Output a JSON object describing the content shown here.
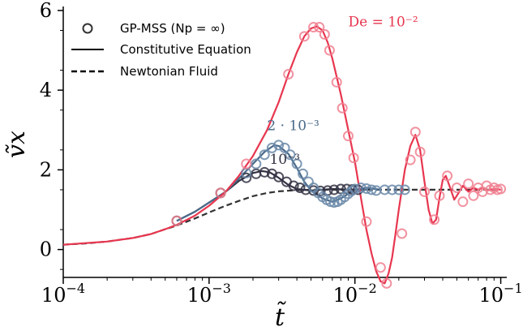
{
  "chart_data": {
    "type": "line",
    "xlabel": "t̃",
    "ylabel": "ṽx",
    "xscale": "log",
    "xlim": [
      0.0001,
      0.11
    ],
    "ylim": [
      -0.7,
      6.1
    ],
    "xticks": [
      {
        "value": 0.0001,
        "base": "10",
        "exp": "−4"
      },
      {
        "value": 0.001,
        "base": "10",
        "exp": "−3"
      },
      {
        "value": 0.01,
        "base": "10",
        "exp": "−2"
      },
      {
        "value": 0.1,
        "base": "10",
        "exp": "−1"
      }
    ],
    "yticks": [
      0,
      2,
      4,
      6
    ],
    "grid": false,
    "legend": {
      "placement": "top-left",
      "entries": [
        {
          "label": "GP-MSS (Np = ∞)",
          "marker": "circle"
        },
        {
          "label": "Constitutive Equation",
          "style": "solid"
        },
        {
          "label": "Newtonian Fluid",
          "style": "dashed"
        }
      ]
    },
    "series": [
      {
        "role": "newtonian",
        "style": "dashed",
        "color": "#333333",
        "x": [
          0.0001,
          0.00015,
          0.0002,
          0.0003,
          0.0004,
          0.0005,
          0.0006,
          0.0008,
          0.001,
          0.0013,
          0.0016,
          0.002,
          0.0025,
          0.003,
          0.004,
          0.005,
          0.007,
          0.01,
          0.02,
          0.05,
          0.1
        ],
        "y": [
          0.12,
          0.16,
          0.2,
          0.29,
          0.39,
          0.51,
          0.6,
          0.78,
          0.93,
          1.1,
          1.22,
          1.34,
          1.42,
          1.46,
          1.49,
          1.5,
          1.5,
          1.5,
          1.5,
          1.5,
          1.5
        ]
      },
      {
        "role": "constitutive",
        "de_label": "10⁻³",
        "style": "solid",
        "color": "#333344",
        "x": [
          0.0006,
          0.0008,
          0.001,
          0.0013,
          0.0016,
          0.002,
          0.0023,
          0.0026,
          0.003,
          0.0035,
          0.004,
          0.005,
          0.006,
          0.007,
          0.008,
          0.009,
          0.01,
          0.012
        ],
        "y": [
          0.72,
          0.95,
          1.18,
          1.45,
          1.72,
          1.92,
          1.97,
          1.94,
          1.8,
          1.62,
          1.52,
          1.48,
          1.5,
          1.52,
          1.51,
          1.5,
          1.5,
          1.5
        ]
      },
      {
        "role": "constitutive",
        "de_label": "2 · 10⁻³",
        "style": "solid",
        "color": "#4a6a8a",
        "x": [
          0.0006,
          0.0008,
          0.001,
          0.0013,
          0.0016,
          0.002,
          0.0024,
          0.0028,
          0.003,
          0.0035,
          0.004,
          0.0045,
          0.005,
          0.006,
          0.007,
          0.008,
          0.009,
          0.01,
          0.012,
          0.015
        ],
        "y": [
          0.72,
          0.95,
          1.18,
          1.45,
          1.78,
          2.15,
          2.45,
          2.62,
          2.6,
          2.4,
          2.05,
          1.7,
          1.48,
          1.28,
          1.2,
          1.28,
          1.4,
          1.5,
          1.55,
          1.5
        ]
      },
      {
        "role": "constitutive",
        "de_label": "De = 10⁻²",
        "style": "solid",
        "color": "#e8364f",
        "x": [
          0.0001,
          0.0002,
          0.0003,
          0.0004,
          0.0005,
          0.0006,
          0.0008,
          0.001,
          0.0013,
          0.0016,
          0.002,
          0.0025,
          0.003,
          0.0035,
          0.004,
          0.0045,
          0.005,
          0.0055,
          0.006,
          0.0065,
          0.007,
          0.008,
          0.009,
          0.01,
          0.011,
          0.012,
          0.013,
          0.014,
          0.015,
          0.016,
          0.017,
          0.018,
          0.019,
          0.02,
          0.022,
          0.024,
          0.026,
          0.028,
          0.03,
          0.032,
          0.034,
          0.036,
          0.038,
          0.04,
          0.042,
          0.045,
          0.048,
          0.05,
          0.055,
          0.06,
          0.065,
          0.07,
          0.075,
          0.08,
          0.09,
          0.1
        ],
        "y": [
          0.12,
          0.2,
          0.29,
          0.39,
          0.51,
          0.62,
          0.85,
          1.1,
          1.45,
          1.85,
          2.35,
          3.0,
          3.7,
          4.4,
          4.95,
          5.35,
          5.55,
          5.6,
          5.5,
          5.2,
          4.8,
          3.9,
          3.0,
          2.2,
          1.3,
          0.5,
          -0.1,
          -0.55,
          -0.8,
          -0.85,
          -0.6,
          -0.2,
          0.4,
          1.0,
          2.0,
          2.6,
          2.88,
          2.5,
          1.7,
          1.0,
          0.65,
          0.75,
          1.3,
          1.75,
          1.85,
          1.55,
          1.25,
          1.35,
          1.6,
          1.45,
          1.55,
          1.5,
          1.55,
          1.48,
          1.52,
          1.5
        ]
      },
      {
        "role": "gp-mss",
        "style": "circles",
        "color": "#333344",
        "x": [
          0.0006,
          0.0012,
          0.0018,
          0.0021,
          0.0024,
          0.0027,
          0.003,
          0.0034,
          0.0038,
          0.0042,
          0.0046,
          0.0052,
          0.0058,
          0.0065,
          0.0072,
          0.008,
          0.0088,
          0.0096,
          0.0105
        ],
        "y": [
          0.72,
          1.42,
          1.8,
          1.9,
          1.94,
          1.9,
          1.82,
          1.7,
          1.6,
          1.55,
          1.5,
          1.48,
          1.47,
          1.48,
          1.5,
          1.52,
          1.52,
          1.51,
          1.5
        ]
      },
      {
        "role": "gp-mss",
        "style": "circles",
        "color": "#6a88a8",
        "x": [
          0.0018,
          0.0021,
          0.0024,
          0.0027,
          0.003,
          0.0033,
          0.0036,
          0.004,
          0.0044,
          0.0048,
          0.0052,
          0.0056,
          0.006,
          0.0064,
          0.0068,
          0.0072,
          0.0076,
          0.008,
          0.0085,
          0.009,
          0.0095,
          0.01,
          0.011,
          0.012,
          0.013,
          0.014,
          0.016,
          0.018,
          0.02,
          0.022
        ],
        "y": [
          1.92,
          2.15,
          2.38,
          2.55,
          2.62,
          2.55,
          2.38,
          2.15,
          1.9,
          1.7,
          1.55,
          1.42,
          1.32,
          1.25,
          1.2,
          1.18,
          1.2,
          1.25,
          1.32,
          1.4,
          1.47,
          1.52,
          1.55,
          1.53,
          1.5,
          1.48,
          1.5,
          1.5,
          1.5,
          1.5
        ]
      },
      {
        "role": "gp-mss",
        "style": "circles",
        "color": "#f08090",
        "x": [
          0.0006,
          0.0012,
          0.0018,
          0.0035,
          0.0045,
          0.0052,
          0.0057,
          0.0062,
          0.0067,
          0.0075,
          0.0082,
          0.009,
          0.0098,
          0.012,
          0.015,
          0.0165,
          0.021,
          0.024,
          0.026,
          0.028,
          0.03,
          0.035,
          0.038,
          0.043,
          0.05,
          0.055,
          0.06,
          0.065,
          0.07,
          0.075,
          0.08,
          0.085,
          0.09,
          0.095,
          0.1
        ],
        "y": [
          0.72,
          1.42,
          2.15,
          4.4,
          5.35,
          5.58,
          5.58,
          5.4,
          5.0,
          4.2,
          3.55,
          2.85,
          2.3,
          0.7,
          -0.45,
          -0.85,
          0.4,
          2.25,
          2.95,
          2.45,
          1.45,
          0.75,
          1.35,
          1.85,
          1.55,
          1.2,
          1.65,
          1.35,
          1.55,
          1.45,
          1.6,
          1.5,
          1.55,
          1.5,
          1.52
        ]
      }
    ],
    "annotations": [
      {
        "text": "De = 10⁻²",
        "x": 0.009,
        "y": 5.6,
        "color": "#e8364f"
      },
      {
        "text": "2 · 10⁻³",
        "x": 0.0025,
        "y": 3.0,
        "color": "#4a6a8a"
      },
      {
        "text": "10⁻³",
        "x": 0.0026,
        "y": 2.15,
        "color": "#333344"
      }
    ]
  }
}
